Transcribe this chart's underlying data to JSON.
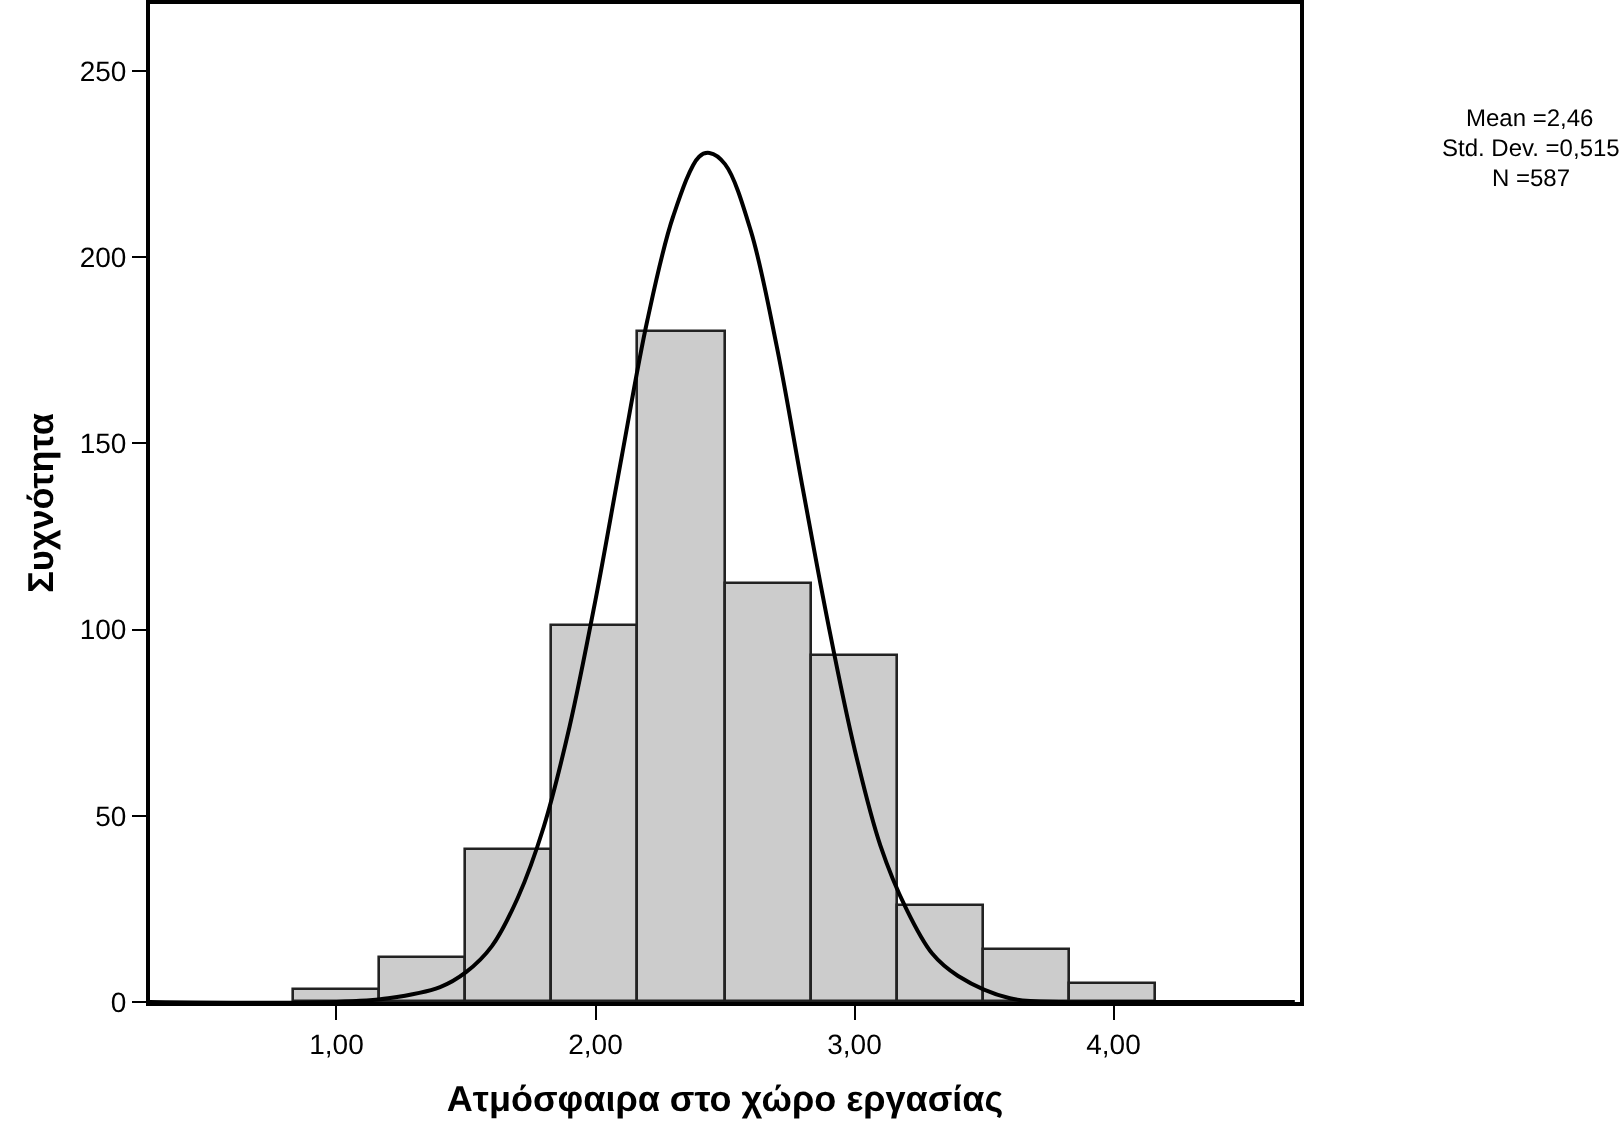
{
  "chart_data": {
    "type": "histogram",
    "xlabel": "Ατμόσφαιρα στο χώρο εργασίας",
    "ylabel": "Συχνότητα",
    "series": [
      {
        "color": "#cccccc",
        "bins": [
          0.833,
          1.167,
          1.5,
          1.833,
          2.167,
          2.5,
          2.833,
          3.167,
          3.5,
          3.833,
          4.167
        ],
        "values": [
          3,
          12,
          41,
          101,
          180,
          112,
          93,
          26,
          14,
          5
        ]
      },
      {
        "type": "line",
        "color": "#000000",
        "x": [
          0.28,
          1.0,
          1.2,
          1.4,
          1.5,
          1.6,
          1.7,
          1.8,
          1.9,
          2.0,
          2.1,
          2.2,
          2.3,
          2.4,
          2.44,
          2.5,
          2.6,
          2.7,
          2.8,
          2.9,
          3.0,
          3.1,
          3.2,
          3.3,
          3.4,
          3.6,
          3.8,
          4.0,
          4.7
        ],
        "values": [
          0,
          0,
          1,
          4,
          8,
          15,
          28,
          47,
          74,
          108,
          146,
          183,
          211,
          227,
          228,
          225,
          207,
          176,
          138,
          101,
          68,
          42,
          25,
          13,
          7,
          1,
          0,
          0,
          0
        ]
      }
    ],
    "xlim": [
      0.28,
      4.72
    ],
    "xticks": [
      {
        "value": 1,
        "label": "1,00"
      },
      {
        "value": 2,
        "label": "2,00"
      },
      {
        "value": 3,
        "label": "3,00"
      },
      {
        "value": 4,
        "label": "4,00"
      }
    ],
    "ylim": [
      0,
      268
    ],
    "yticks": [
      0,
      50,
      100,
      150,
      200,
      250
    ],
    "annotations": [
      "Mean =2,46",
      "Std. Dev. =0,515",
      "N =587"
    ]
  }
}
